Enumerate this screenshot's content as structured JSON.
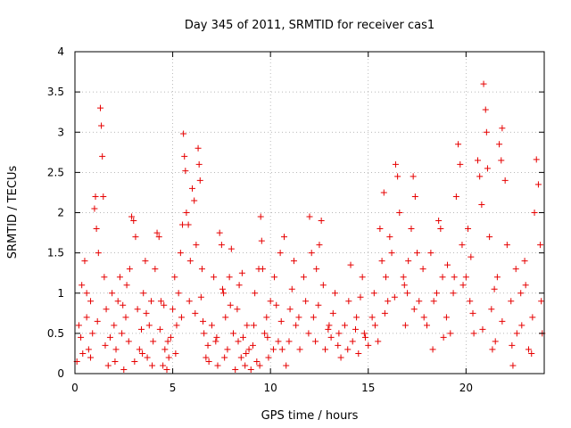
{
  "chart_data": {
    "type": "scatter",
    "title": "Day 345 of 2011, SRMTID for receiver cas1",
    "xlabel": "GPS time / hours",
    "ylabel": "SRMTID / TECUs",
    "xlim": [
      0,
      24
    ],
    "ylim": [
      0,
      4
    ],
    "xticks": [
      "0",
      "5",
      "10",
      "15",
      "20"
    ],
    "yticks": [
      "0",
      "0.5",
      "1",
      "1.5",
      "2",
      "2.5",
      "3",
      "3.5",
      "4"
    ],
    "grid": true,
    "marker": "plus",
    "color": "#e60000",
    "series": [
      {
        "name": "SRMTID",
        "points": [
          [
            0.1,
            0.15
          ],
          [
            0.2,
            0.6
          ],
          [
            0.3,
            0.45
          ],
          [
            0.35,
            1.1
          ],
          [
            0.5,
            1.4
          ],
          [
            0.6,
            0.7
          ],
          [
            0.7,
            0.3
          ],
          [
            0.8,
            0.9
          ],
          [
            0.9,
            0.5
          ],
          [
            1.0,
            2.05
          ],
          [
            1.05,
            2.2
          ],
          [
            1.1,
            1.8
          ],
          [
            1.2,
            1.5
          ],
          [
            1.3,
            3.3
          ],
          [
            1.35,
            3.08
          ],
          [
            1.4,
            2.7
          ],
          [
            1.45,
            2.2
          ],
          [
            1.5,
            1.2
          ],
          [
            1.6,
            0.8
          ],
          [
            1.7,
            0.1
          ],
          [
            1.8,
            0.45
          ],
          [
            1.9,
            1.0
          ],
          [
            2.0,
            0.6
          ],
          [
            2.1,
            0.3
          ],
          [
            2.2,
            0.9
          ],
          [
            2.3,
            1.2
          ],
          [
            2.4,
            0.5
          ],
          [
            2.5,
            0.05
          ],
          [
            2.6,
            0.7
          ],
          [
            2.8,
            1.3
          ],
          [
            2.9,
            1.95
          ],
          [
            3.0,
            1.9
          ],
          [
            3.1,
            1.7
          ],
          [
            3.2,
            0.8
          ],
          [
            3.3,
            0.3
          ],
          [
            3.4,
            0.55
          ],
          [
            3.5,
            1.0
          ],
          [
            3.6,
            1.4
          ],
          [
            3.7,
            0.2
          ],
          [
            3.8,
            0.6
          ],
          [
            3.9,
            0.9
          ],
          [
            4.0,
            0.4
          ],
          [
            4.1,
            1.3
          ],
          [
            4.2,
            1.75
          ],
          [
            4.3,
            1.7
          ],
          [
            4.4,
            0.9
          ],
          [
            4.5,
            0.1
          ],
          [
            4.6,
            0.3
          ],
          [
            4.7,
            0.05
          ],
          [
            4.8,
            0.2
          ],
          [
            4.9,
            0.45
          ],
          [
            5.0,
            0.8
          ],
          [
            5.1,
            1.2
          ],
          [
            5.2,
            0.6
          ],
          [
            5.3,
            1.0
          ],
          [
            5.4,
            1.5
          ],
          [
            5.5,
            1.85
          ],
          [
            5.55,
            2.98
          ],
          [
            5.6,
            2.7
          ],
          [
            5.65,
            2.52
          ],
          [
            5.7,
            2.0
          ],
          [
            5.8,
            1.85
          ],
          [
            5.9,
            1.4
          ],
          [
            6.0,
            2.3
          ],
          [
            6.1,
            2.15
          ],
          [
            6.2,
            1.6
          ],
          [
            6.3,
            2.8
          ],
          [
            6.35,
            2.6
          ],
          [
            6.4,
            2.4
          ],
          [
            6.5,
            1.3
          ],
          [
            6.6,
            0.5
          ],
          [
            6.7,
            0.2
          ],
          [
            6.8,
            0.35
          ],
          [
            7.0,
            0.6
          ],
          [
            7.1,
            1.2
          ],
          [
            7.2,
            0.4
          ],
          [
            7.3,
            0.1
          ],
          [
            7.4,
            1.75
          ],
          [
            7.5,
            1.6
          ],
          [
            7.6,
            1.0
          ],
          [
            7.7,
            0.7
          ],
          [
            7.8,
            0.3
          ],
          [
            7.9,
            1.2
          ],
          [
            8.0,
            1.55
          ],
          [
            8.1,
            0.5
          ],
          [
            8.2,
            0.05
          ],
          [
            8.3,
            0.8
          ],
          [
            8.4,
            1.1
          ],
          [
            8.5,
            0.2
          ],
          [
            8.6,
            0.45
          ],
          [
            8.7,
            0.1
          ],
          [
            8.8,
            0.6
          ],
          [
            8.9,
            0.3
          ],
          [
            9.0,
            0.05
          ],
          [
            9.1,
            0.35
          ],
          [
            9.2,
            1.0
          ],
          [
            9.3,
            0.15
          ],
          [
            9.4,
            1.3
          ],
          [
            9.5,
            1.95
          ],
          [
            9.55,
            1.65
          ],
          [
            9.6,
            1.3
          ],
          [
            9.7,
            0.5
          ],
          [
            9.8,
            0.7
          ],
          [
            9.9,
            0.2
          ],
          [
            10.0,
            0.9
          ],
          [
            10.2,
            1.2
          ],
          [
            10.4,
            0.4
          ],
          [
            10.5,
            1.5
          ],
          [
            10.6,
            0.3
          ],
          [
            10.7,
            1.7
          ],
          [
            10.8,
            0.1
          ],
          [
            11.0,
            0.8
          ],
          [
            11.2,
            1.4
          ],
          [
            11.3,
            0.6
          ],
          [
            11.5,
            0.3
          ],
          [
            11.7,
            1.2
          ],
          [
            11.8,
            0.9
          ],
          [
            12.0,
            1.95
          ],
          [
            12.1,
            1.5
          ],
          [
            12.2,
            0.7
          ],
          [
            12.3,
            0.4
          ],
          [
            12.5,
            1.6
          ],
          [
            12.6,
            1.9
          ],
          [
            12.7,
            1.1
          ],
          [
            12.8,
            0.3
          ],
          [
            13.0,
            0.6
          ],
          [
            13.1,
            0.45
          ],
          [
            13.3,
            1.0
          ],
          [
            13.5,
            0.5
          ],
          [
            13.6,
            0.2
          ],
          [
            13.8,
            0.6
          ],
          [
            14.0,
            0.9
          ],
          [
            14.1,
            1.35
          ],
          [
            14.2,
            0.4
          ],
          [
            14.4,
            0.7
          ],
          [
            14.5,
            0.25
          ],
          [
            14.7,
            1.2
          ],
          [
            14.8,
            0.5
          ],
          [
            15.0,
            0.35
          ],
          [
            15.2,
            0.7
          ],
          [
            15.3,
            1.0
          ],
          [
            15.5,
            0.4
          ],
          [
            15.6,
            1.8
          ],
          [
            15.7,
            1.4
          ],
          [
            15.8,
            2.25
          ],
          [
            15.9,
            1.2
          ],
          [
            16.0,
            0.9
          ],
          [
            16.2,
            1.5
          ],
          [
            16.4,
            2.6
          ],
          [
            16.5,
            2.45
          ],
          [
            16.6,
            2.0
          ],
          [
            16.8,
            1.2
          ],
          [
            16.9,
            0.6
          ],
          [
            17.0,
            1.0
          ],
          [
            17.2,
            1.8
          ],
          [
            17.3,
            2.45
          ],
          [
            17.4,
            2.2
          ],
          [
            17.5,
            1.5
          ],
          [
            17.6,
            0.9
          ],
          [
            17.8,
            1.3
          ],
          [
            18.0,
            0.6
          ],
          [
            18.2,
            1.5
          ],
          [
            18.3,
            0.3
          ],
          [
            18.5,
            1.0
          ],
          [
            18.7,
            1.8
          ],
          [
            18.8,
            1.2
          ],
          [
            19.0,
            0.7
          ],
          [
            19.2,
            0.5
          ],
          [
            19.4,
            1.2
          ],
          [
            19.5,
            2.2
          ],
          [
            19.6,
            2.85
          ],
          [
            19.7,
            2.6
          ],
          [
            19.8,
            1.6
          ],
          [
            20.0,
            1.2
          ],
          [
            20.1,
            1.8
          ],
          [
            20.2,
            0.9
          ],
          [
            20.4,
            0.5
          ],
          [
            20.6,
            2.65
          ],
          [
            20.7,
            2.45
          ],
          [
            20.8,
            2.1
          ],
          [
            20.9,
            3.6
          ],
          [
            21.0,
            3.28
          ],
          [
            21.05,
            3.0
          ],
          [
            21.1,
            2.55
          ],
          [
            21.2,
            1.7
          ],
          [
            21.3,
            0.8
          ],
          [
            21.5,
            0.4
          ],
          [
            21.6,
            1.2
          ],
          [
            21.7,
            2.85
          ],
          [
            21.8,
            2.65
          ],
          [
            21.85,
            3.05
          ],
          [
            22.0,
            2.4
          ],
          [
            22.1,
            1.6
          ],
          [
            22.3,
            0.9
          ],
          [
            22.4,
            0.1
          ],
          [
            22.6,
            0.5
          ],
          [
            22.8,
            1.0
          ],
          [
            23.0,
            1.4
          ],
          [
            23.2,
            0.3
          ],
          [
            23.4,
            0.7
          ],
          [
            23.5,
            2.0
          ],
          [
            23.6,
            2.66
          ],
          [
            23.7,
            2.35
          ],
          [
            23.8,
            1.6
          ],
          [
            23.9,
            0.5
          ],
          [
            0.4,
            0.25
          ],
          [
            0.6,
            1.0
          ],
          [
            0.8,
            0.2
          ],
          [
            1.15,
            0.65
          ],
          [
            1.55,
            0.35
          ],
          [
            2.05,
            0.15
          ],
          [
            2.45,
            0.85
          ],
          [
            2.75,
            0.4
          ],
          [
            3.05,
            0.15
          ],
          [
            3.45,
            0.25
          ],
          [
            3.95,
            0.1
          ],
          [
            4.35,
            0.55
          ],
          [
            4.75,
            0.4
          ],
          [
            5.15,
            0.25
          ],
          [
            5.45,
            0.7
          ],
          [
            5.85,
            0.9
          ],
          [
            6.15,
            0.75
          ],
          [
            6.45,
            0.95
          ],
          [
            6.85,
            0.15
          ],
          [
            7.25,
            0.45
          ],
          [
            7.65,
            0.2
          ],
          [
            7.95,
            0.85
          ],
          [
            8.35,
            0.4
          ],
          [
            8.75,
            0.25
          ],
          [
            9.15,
            0.6
          ],
          [
            9.45,
            0.1
          ],
          [
            9.85,
            0.45
          ],
          [
            10.15,
            0.3
          ],
          [
            10.55,
            0.65
          ],
          [
            10.95,
            0.4
          ],
          [
            11.45,
            0.7
          ],
          [
            11.95,
            0.5
          ],
          [
            12.45,
            0.85
          ],
          [
            12.95,
            0.55
          ],
          [
            13.45,
            0.35
          ],
          [
            13.95,
            0.3
          ],
          [
            14.35,
            0.55
          ],
          [
            14.85,
            0.45
          ],
          [
            15.35,
            0.6
          ],
          [
            15.85,
            0.75
          ],
          [
            16.35,
            0.95
          ],
          [
            16.85,
            1.1
          ],
          [
            17.35,
            0.8
          ],
          [
            17.85,
            0.7
          ],
          [
            18.35,
            0.9
          ],
          [
            18.85,
            0.45
          ],
          [
            19.35,
            1.0
          ],
          [
            19.85,
            1.1
          ],
          [
            20.35,
            0.75
          ],
          [
            20.85,
            0.55
          ],
          [
            21.35,
            0.3
          ],
          [
            21.85,
            0.65
          ],
          [
            22.35,
            0.35
          ],
          [
            22.85,
            0.6
          ],
          [
            23.35,
            0.25
          ],
          [
            23.85,
            0.9
          ],
          [
            16.1,
            1.7
          ],
          [
            17.05,
            1.4
          ],
          [
            18.6,
            1.9
          ],
          [
            19.05,
            1.35
          ],
          [
            20.25,
            1.45
          ],
          [
            21.45,
            1.05
          ],
          [
            22.55,
            1.3
          ],
          [
            23.05,
            1.1
          ],
          [
            14.6,
            0.95
          ],
          [
            13.2,
            0.75
          ],
          [
            12.35,
            1.3
          ],
          [
            11.1,
            1.05
          ],
          [
            10.3,
            0.85
          ],
          [
            8.55,
            1.25
          ],
          [
            7.55,
            1.05
          ],
          [
            6.55,
            0.65
          ],
          [
            4.55,
            0.85
          ],
          [
            3.65,
            0.75
          ],
          [
            2.65,
            1.1
          ]
        ]
      }
    ]
  }
}
